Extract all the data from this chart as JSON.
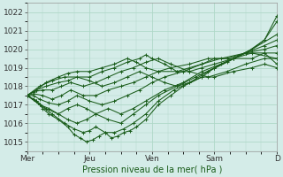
{
  "xlabel": "Pression niveau de la mer( hPa )",
  "bg_color": "#d4ece8",
  "grid_color": "#b0d8c8",
  "line_color": "#1a5c1a",
  "xlim": [
    0,
    4.0
  ],
  "ylim": [
    1014.5,
    1022.5
  ],
  "yticks": [
    1015,
    1016,
    1017,
    1018,
    1019,
    1020,
    1021,
    1022
  ],
  "xtick_labels": [
    "Mer",
    "Jeu",
    "Ven",
    "Sam",
    "D"
  ],
  "xtick_positions": [
    0.0,
    1.0,
    2.0,
    3.0,
    4.0
  ],
  "forecast_lines": [
    {
      "points": [
        [
          0.0,
          1017.5
        ],
        [
          0.15,
          1017.2
        ],
        [
          0.25,
          1016.8
        ],
        [
          0.35,
          1016.5
        ],
        [
          0.5,
          1016.2
        ],
        [
          0.65,
          1015.8
        ],
        [
          0.75,
          1015.4
        ],
        [
          0.85,
          1015.2
        ],
        [
          0.95,
          1015.0
        ],
        [
          1.05,
          1015.1
        ],
        [
          1.15,
          1015.3
        ],
        [
          1.25,
          1015.5
        ],
        [
          1.35,
          1015.2
        ],
        [
          1.45,
          1015.3
        ],
        [
          1.55,
          1015.5
        ],
        [
          1.65,
          1015.6
        ],
        [
          1.75,
          1015.8
        ],
        [
          1.9,
          1016.2
        ],
        [
          2.1,
          1017.0
        ],
        [
          2.3,
          1017.5
        ],
        [
          2.5,
          1018.0
        ],
        [
          2.8,
          1018.5
        ],
        [
          3.0,
          1019.0
        ],
        [
          3.3,
          1019.5
        ],
        [
          3.6,
          1020.0
        ],
        [
          3.8,
          1020.5
        ],
        [
          4.0,
          1021.8
        ]
      ]
    },
    {
      "points": [
        [
          0.0,
          1017.5
        ],
        [
          0.2,
          1017.0
        ],
        [
          0.4,
          1016.5
        ],
        [
          0.6,
          1016.0
        ],
        [
          0.75,
          1015.7
        ],
        [
          0.9,
          1015.5
        ],
        [
          1.0,
          1015.6
        ],
        [
          1.1,
          1015.8
        ],
        [
          1.25,
          1015.5
        ],
        [
          1.4,
          1015.5
        ],
        [
          1.55,
          1015.7
        ],
        [
          1.7,
          1016.0
        ],
        [
          1.9,
          1016.5
        ],
        [
          2.1,
          1017.2
        ],
        [
          2.35,
          1017.8
        ],
        [
          2.6,
          1018.2
        ],
        [
          2.9,
          1018.8
        ],
        [
          3.2,
          1019.3
        ],
        [
          3.5,
          1019.8
        ],
        [
          3.8,
          1020.5
        ],
        [
          4.0,
          1021.5
        ]
      ]
    },
    {
      "points": [
        [
          0.0,
          1017.5
        ],
        [
          0.15,
          1017.2
        ],
        [
          0.3,
          1016.8
        ],
        [
          0.5,
          1016.5
        ],
        [
          0.65,
          1016.2
        ],
        [
          0.8,
          1016.0
        ],
        [
          0.95,
          1016.2
        ],
        [
          1.1,
          1016.5
        ],
        [
          1.3,
          1016.2
        ],
        [
          1.5,
          1016.0
        ],
        [
          1.7,
          1016.5
        ],
        [
          1.9,
          1017.0
        ],
        [
          2.1,
          1017.5
        ],
        [
          2.4,
          1018.0
        ],
        [
          2.7,
          1018.5
        ],
        [
          3.0,
          1019.0
        ],
        [
          3.3,
          1019.5
        ],
        [
          3.6,
          1020.0
        ],
        [
          4.0,
          1020.8
        ]
      ]
    },
    {
      "points": [
        [
          0.0,
          1017.5
        ],
        [
          0.1,
          1017.3
        ],
        [
          0.2,
          1017.0
        ],
        [
          0.35,
          1016.8
        ],
        [
          0.5,
          1016.5
        ],
        [
          0.65,
          1016.8
        ],
        [
          0.8,
          1017.0
        ],
        [
          0.95,
          1016.8
        ],
        [
          1.1,
          1016.5
        ],
        [
          1.3,
          1016.8
        ],
        [
          1.5,
          1016.5
        ],
        [
          1.7,
          1016.8
        ],
        [
          1.9,
          1017.2
        ],
        [
          2.2,
          1017.8
        ],
        [
          2.5,
          1018.2
        ],
        [
          2.8,
          1018.8
        ],
        [
          3.1,
          1019.2
        ],
        [
          3.5,
          1019.8
        ],
        [
          3.8,
          1020.2
        ],
        [
          4.0,
          1020.5
        ]
      ]
    },
    {
      "points": [
        [
          0.0,
          1017.5
        ],
        [
          0.1,
          1017.5
        ],
        [
          0.2,
          1017.3
        ],
        [
          0.35,
          1017.1
        ],
        [
          0.5,
          1017.0
        ],
        [
          0.65,
          1017.2
        ],
        [
          0.8,
          1017.5
        ],
        [
          1.0,
          1017.2
        ],
        [
          1.2,
          1017.0
        ],
        [
          1.4,
          1017.2
        ],
        [
          1.6,
          1017.5
        ],
        [
          1.8,
          1017.8
        ],
        [
          2.0,
          1018.2
        ],
        [
          2.2,
          1018.5
        ],
        [
          2.5,
          1018.8
        ],
        [
          2.8,
          1019.2
        ],
        [
          3.1,
          1019.5
        ],
        [
          3.5,
          1019.8
        ],
        [
          3.8,
          1020.0
        ],
        [
          4.0,
          1020.2
        ]
      ]
    },
    {
      "points": [
        [
          0.0,
          1017.5
        ],
        [
          0.1,
          1017.6
        ],
        [
          0.25,
          1017.5
        ],
        [
          0.4,
          1017.3
        ],
        [
          0.55,
          1017.5
        ],
        [
          0.7,
          1017.8
        ],
        [
          0.9,
          1017.5
        ],
        [
          1.1,
          1017.5
        ],
        [
          1.3,
          1017.8
        ],
        [
          1.5,
          1018.0
        ],
        [
          1.7,
          1018.2
        ],
        [
          1.9,
          1018.5
        ],
        [
          2.1,
          1018.8
        ],
        [
          2.3,
          1019.0
        ],
        [
          2.6,
          1019.2
        ],
        [
          2.9,
          1019.5
        ],
        [
          3.2,
          1019.5
        ],
        [
          3.5,
          1019.8
        ],
        [
          3.8,
          1019.8
        ],
        [
          4.0,
          1019.8
        ]
      ]
    },
    {
      "points": [
        [
          0.0,
          1017.5
        ],
        [
          0.1,
          1017.7
        ],
        [
          0.25,
          1017.8
        ],
        [
          0.4,
          1017.8
        ],
        [
          0.55,
          1018.0
        ],
        [
          0.7,
          1018.2
        ],
        [
          0.9,
          1018.0
        ],
        [
          1.1,
          1018.2
        ],
        [
          1.3,
          1018.5
        ],
        [
          1.5,
          1018.8
        ],
        [
          1.7,
          1019.0
        ],
        [
          1.9,
          1019.3
        ],
        [
          2.1,
          1019.5
        ],
        [
          2.3,
          1019.2
        ],
        [
          2.6,
          1018.8
        ],
        [
          2.9,
          1018.5
        ],
        [
          3.2,
          1018.8
        ],
        [
          3.5,
          1019.2
        ],
        [
          3.8,
          1019.5
        ],
        [
          4.0,
          1019.5
        ]
      ]
    },
    {
      "points": [
        [
          0.0,
          1017.5
        ],
        [
          0.15,
          1017.8
        ],
        [
          0.3,
          1018.0
        ],
        [
          0.5,
          1018.2
        ],
        [
          0.65,
          1018.3
        ],
        [
          0.8,
          1018.5
        ],
        [
          1.0,
          1018.5
        ],
        [
          1.2,
          1018.8
        ],
        [
          1.4,
          1019.0
        ],
        [
          1.6,
          1019.3
        ],
        [
          1.8,
          1019.5
        ],
        [
          1.9,
          1019.7
        ],
        [
          2.0,
          1019.5
        ],
        [
          2.2,
          1019.2
        ],
        [
          2.4,
          1018.8
        ],
        [
          2.6,
          1018.8
        ],
        [
          2.8,
          1019.0
        ],
        [
          3.0,
          1019.2
        ],
        [
          3.3,
          1019.5
        ],
        [
          3.6,
          1019.5
        ],
        [
          3.8,
          1019.8
        ],
        [
          4.0,
          1019.2
        ]
      ]
    },
    {
      "points": [
        [
          0.0,
          1017.5
        ],
        [
          0.15,
          1017.8
        ],
        [
          0.3,
          1018.2
        ],
        [
          0.5,
          1018.5
        ],
        [
          0.65,
          1018.7
        ],
        [
          0.8,
          1018.8
        ],
        [
          1.0,
          1018.8
        ],
        [
          1.2,
          1019.0
        ],
        [
          1.4,
          1019.2
        ],
        [
          1.6,
          1019.5
        ],
        [
          1.75,
          1019.3
        ],
        [
          1.9,
          1019.0
        ],
        [
          2.1,
          1018.8
        ],
        [
          2.4,
          1018.8
        ],
        [
          2.6,
          1019.0
        ],
        [
          2.8,
          1019.2
        ],
        [
          3.0,
          1019.5
        ],
        [
          3.3,
          1019.5
        ],
        [
          3.6,
          1019.8
        ],
        [
          4.0,
          1019.5
        ]
      ]
    },
    {
      "points": [
        [
          0.0,
          1017.5
        ],
        [
          0.2,
          1018.0
        ],
        [
          0.4,
          1018.3
        ],
        [
          0.6,
          1018.5
        ],
        [
          0.8,
          1018.5
        ],
        [
          1.0,
          1018.3
        ],
        [
          1.2,
          1018.0
        ],
        [
          1.4,
          1018.2
        ],
        [
          1.6,
          1018.5
        ],
        [
          1.8,
          1018.8
        ],
        [
          2.0,
          1018.5
        ],
        [
          2.2,
          1018.2
        ],
        [
          2.4,
          1018.0
        ],
        [
          2.6,
          1018.2
        ],
        [
          2.8,
          1018.5
        ],
        [
          3.0,
          1018.5
        ],
        [
          3.3,
          1018.8
        ],
        [
          3.6,
          1019.0
        ],
        [
          3.8,
          1019.2
        ],
        [
          4.0,
          1019.0
        ]
      ]
    }
  ]
}
